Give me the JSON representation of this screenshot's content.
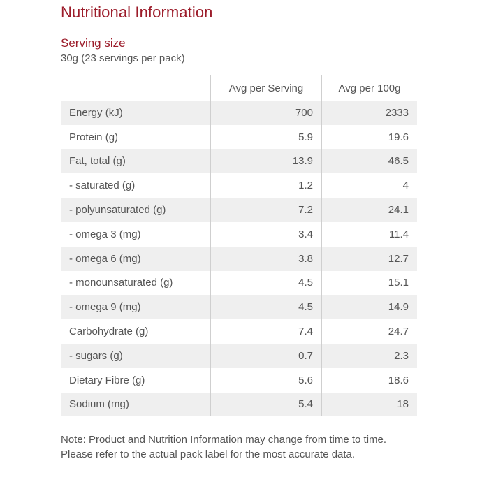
{
  "title": "Nutritional Information",
  "serving": {
    "heading": "Serving size",
    "value": "30g (23 servings per pack)"
  },
  "table": {
    "headers": {
      "label": "",
      "per_serving": "Avg per Serving",
      "per_100g": "Avg per 100g"
    },
    "rows": [
      {
        "label": "Energy (kJ)",
        "per_serving": "700",
        "per_100g": "2333"
      },
      {
        "label": "Protein (g)",
        "per_serving": "5.9",
        "per_100g": "19.6"
      },
      {
        "label": "Fat, total (g)",
        "per_serving": "13.9",
        "per_100g": "46.5"
      },
      {
        "label": "- saturated (g)",
        "per_serving": "1.2",
        "per_100g": "4"
      },
      {
        "label": "- polyunsaturated (g)",
        "per_serving": "7.2",
        "per_100g": "24.1"
      },
      {
        "label": "- omega 3 (mg)",
        "per_serving": "3.4",
        "per_100g": "11.4"
      },
      {
        "label": "- omega 6 (mg)",
        "per_serving": "3.8",
        "per_100g": "12.7"
      },
      {
        "label": "- monounsaturated (g)",
        "per_serving": "4.5",
        "per_100g": "15.1"
      },
      {
        "label": "- omega 9 (mg)",
        "per_serving": "4.5",
        "per_100g": "14.9"
      },
      {
        "label": "Carbohydrate (g)",
        "per_serving": "7.4",
        "per_100g": "24.7"
      },
      {
        "label": "- sugars (g)",
        "per_serving": "0.7",
        "per_100g": "2.3"
      },
      {
        "label": "Dietary Fibre (g)",
        "per_serving": "5.6",
        "per_100g": "18.6"
      },
      {
        "label": "Sodium (mg)",
        "per_serving": "5.4",
        "per_100g": "18"
      }
    ]
  },
  "note": "Note: Product and Nutrition Information may change from time to time. Please refer to the actual pack label for the most accurate data.",
  "colors": {
    "accent": "#9c1c2a",
    "text": "#555555",
    "row_shade": "#efefef",
    "divider": "#cfcfcf"
  }
}
